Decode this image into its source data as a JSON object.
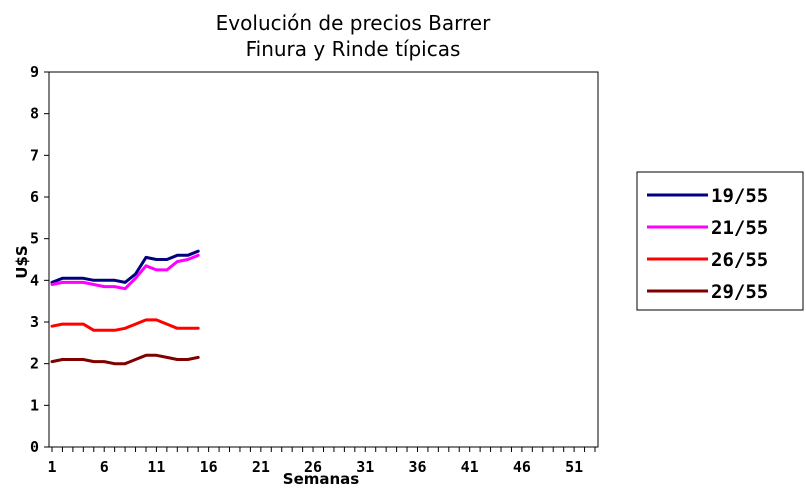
{
  "chart_data": {
    "type": "line",
    "title": [
      "Evolución de precios Barrer",
      "Finura y Rinde típicas"
    ],
    "xlabel": "Semanas",
    "ylabel": "U$S",
    "xlim": [
      1,
      53
    ],
    "ylim": [
      0,
      9
    ],
    "x_ticks": [
      "1",
      "6",
      "11",
      "16",
      "21",
      "26",
      "31",
      "36",
      "41",
      "46",
      "51"
    ],
    "y_ticks": [
      "0",
      "1",
      "2",
      "3",
      "4",
      "5",
      "6",
      "7",
      "8",
      "9"
    ],
    "grid": false,
    "legend_position": "right",
    "x": [
      1,
      2,
      3,
      4,
      5,
      6,
      7,
      8,
      9,
      10,
      11,
      12,
      13,
      14,
      15
    ],
    "series": [
      {
        "name": "19/55",
        "color": "#000080",
        "values": [
          3.95,
          4.05,
          4.05,
          4.05,
          4.0,
          4.0,
          4.0,
          3.95,
          4.15,
          4.55,
          4.5,
          4.5,
          4.6,
          4.6,
          4.7
        ]
      },
      {
        "name": "21/55",
        "color": "#ff00ff",
        "values": [
          3.9,
          3.95,
          3.95,
          3.95,
          3.9,
          3.85,
          3.85,
          3.8,
          4.05,
          4.35,
          4.25,
          4.25,
          4.45,
          4.5,
          4.6
        ]
      },
      {
        "name": "26/55",
        "color": "#ff0000",
        "values": [
          2.9,
          2.95,
          2.95,
          2.95,
          2.8,
          2.8,
          2.8,
          2.85,
          2.95,
          3.05,
          3.05,
          2.95,
          2.85,
          2.85,
          2.85
        ]
      },
      {
        "name": "29/55",
        "color": "#800000",
        "values": [
          2.05,
          2.1,
          2.1,
          2.1,
          2.05,
          2.05,
          2.0,
          2.0,
          2.1,
          2.2,
          2.2,
          2.15,
          2.1,
          2.1,
          2.15
        ]
      }
    ]
  }
}
